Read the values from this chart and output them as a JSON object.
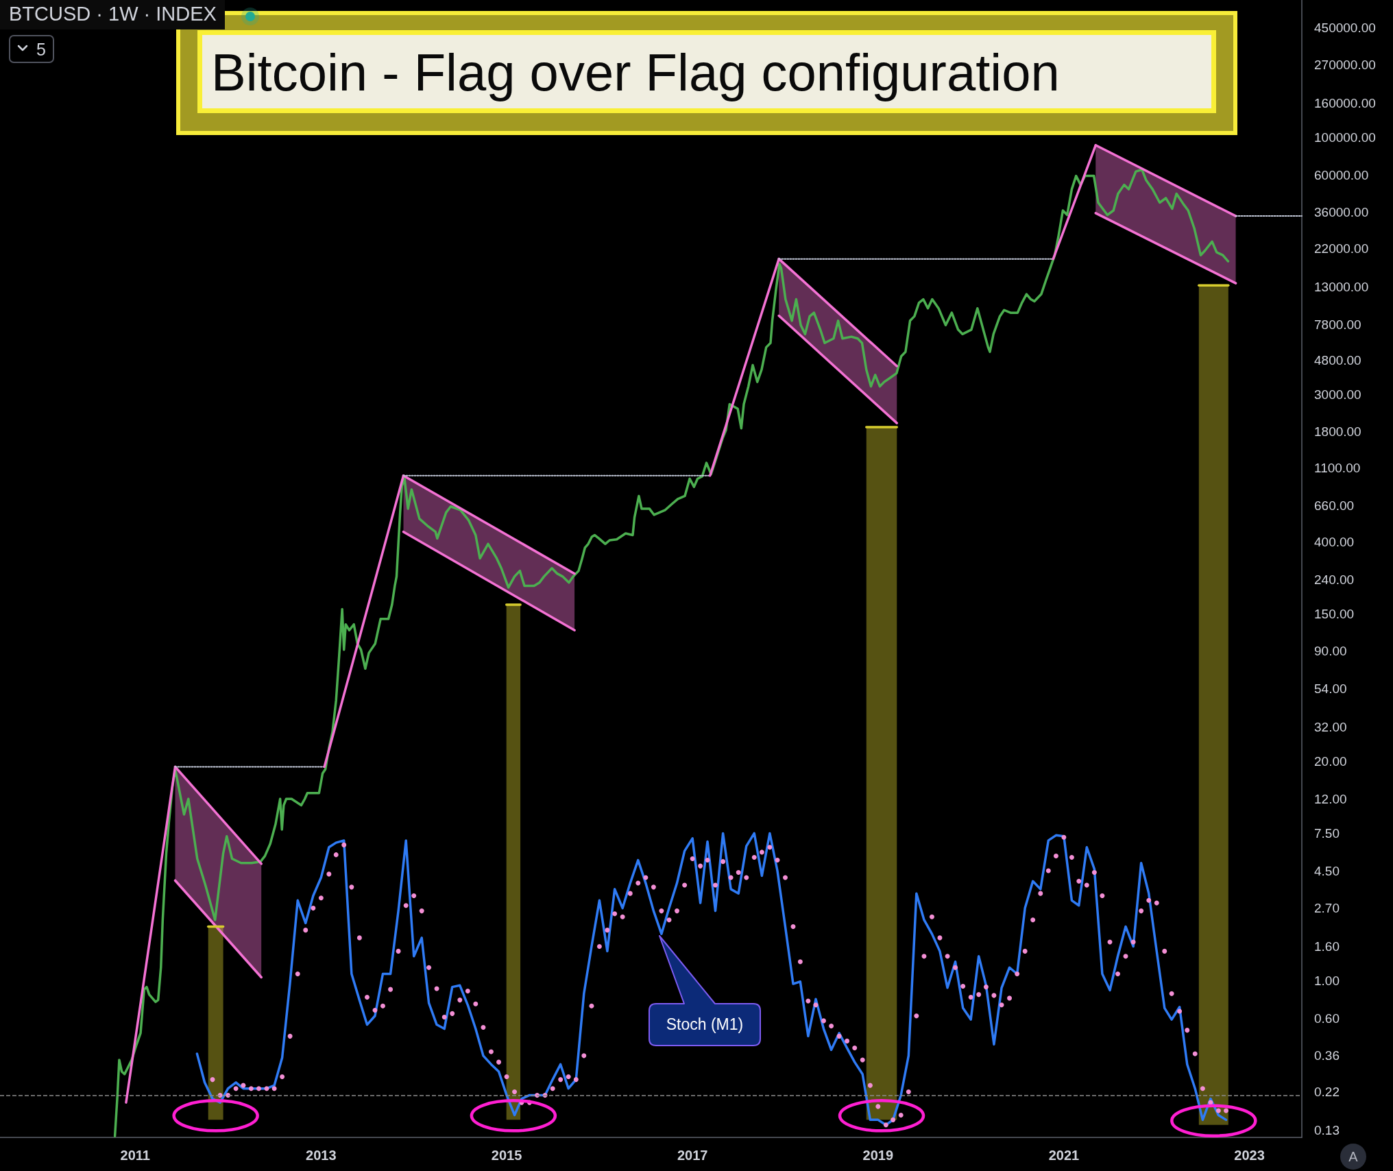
{
  "chart_data": {
    "type": "line",
    "title": "Bitcoin - Flag over Flag configuration",
    "subtitle": "BTCUSD · 1W · INDEX",
    "annotations": [
      "5",
      "A",
      "Stoch (M1)"
    ],
    "log": true,
    "marker": "none",
    "xlim": [
      "2009-07-18",
      "2023-07-26"
    ],
    "xticks": [
      "2011",
      "2013",
      "2015",
      "2017",
      "2019",
      "2021",
      "2023"
    ],
    "ylim": [
      0.118,
      655000
    ],
    "yticks": [
      {
        "value": 450000,
        "label": "450000.00"
      },
      {
        "value": 270000,
        "label": "270000.00"
      },
      {
        "value": 160000,
        "label": "160000.00"
      },
      {
        "value": 100000,
        "label": "100000.00"
      },
      {
        "value": 60000,
        "label": "60000.00"
      },
      {
        "value": 36000,
        "label": "36000.00"
      },
      {
        "value": 22000,
        "label": "22000.00"
      },
      {
        "value": 13000,
        "label": "13000.00"
      },
      {
        "value": 7800,
        "label": "7800.00"
      },
      {
        "value": 4800,
        "label": "4800.00"
      },
      {
        "value": 3000,
        "label": "3000.00"
      },
      {
        "value": 1800,
        "label": "1800.00"
      },
      {
        "value": 1100,
        "label": "1100.00"
      },
      {
        "value": 660,
        "label": "660.00"
      },
      {
        "value": 400,
        "label": "400.00"
      },
      {
        "value": 240,
        "label": "240.00"
      },
      {
        "value": 150,
        "label": "150.00"
      },
      {
        "value": 90,
        "label": "90.00"
      },
      {
        "value": 54,
        "label": "54.00"
      },
      {
        "value": 32,
        "label": "32.00"
      },
      {
        "value": 20,
        "label": "20.00"
      },
      {
        "value": 12,
        "label": "12.00"
      },
      {
        "value": 7.5,
        "label": "7.50"
      },
      {
        "value": 4.5,
        "label": "4.50"
      },
      {
        "value": 2.7,
        "label": "2.70"
      },
      {
        "value": 1.6,
        "label": "1.60"
      },
      {
        "value": 1,
        "label": "1.00"
      },
      {
        "value": 0.6,
        "label": "0.60"
      },
      0.36,
      0.22,
      0.13
    ],
    "ref_lines": [
      {
        "axis": "y",
        "value": 0.21,
        "line_style": "dashed",
        "color": "#8c8c8c"
      }
    ],
    "series": [
      {
        "type": "line",
        "color": "#4caf50",
        "x": [
          "2010-10-13",
          "2010-10-23",
          "2010-10-30",
          "2010-11-09",
          "2010-11-20",
          "2010-12-18",
          "2011-01-04",
          "2011-01-22",
          "2011-02-05",
          "2011-02-15",
          "2011-02-25",
          "2011-03-22",
          "2011-04-01",
          "2011-04-12",
          "2011-04-19",
          "2011-05-03",
          "2011-05-13",
          "2011-05-27",
          "2011-06-07",
          "2011-07-12",
          "2011-07-29",
          "2011-09-02",
          "2011-10-04",
          "2011-11-11",
          "2011-12-13",
          "2011-12-27",
          "2012-01-17",
          "2012-02-21",
          "2012-04-03",
          "2012-05-08",
          "2012-05-25",
          "2012-06-15",
          "2012-07-06",
          "2012-07-24",
          "2012-07-31",
          "2012-08-07",
          "2012-08-17",
          "2012-09-07",
          "2012-10-15",
          "2012-10-29",
          "2012-11-08",
          "2012-11-30",
          "2012-12-24",
          "2013-01-07",
          "2013-01-18",
          "2013-02-01",
          "2013-02-15",
          "2013-03-01",
          "2013-03-13",
          "2013-03-25",
          "2013-04-01",
          "2013-04-08",
          "2013-04-22",
          "2013-05-10",
          "2013-05-24",
          "2013-06-07",
          "2013-06-24",
          "2013-07-08",
          "2013-08-02",
          "2013-08-23",
          "2013-09-23",
          "2013-10-07",
          "2013-10-18",
          "2013-10-25",
          "2013-11-01",
          "2013-11-08",
          "2013-11-15",
          "2013-11-25",
          "2013-12-09",
          "2013-12-23",
          "2014-01-23",
          "2014-02-23",
          "2014-03-27",
          "2014-04-03",
          "2014-05-08",
          "2014-05-26",
          "2014-07-03",
          "2014-08-04",
          "2014-09-01",
          "2014-09-18",
          "2014-10-20",
          "2014-11-23",
          "2014-12-11",
          "2015-01-08",
          "2015-02-01",
          "2015-02-22",
          "2015-03-12",
          "2015-04-19",
          "2015-05-10",
          "2015-05-28",
          "2015-06-28",
          "2015-07-19",
          "2015-08-09",
          "2015-09-03",
          "2015-09-20",
          "2015-10-11",
          "2015-10-25",
          "2015-11-05",
          "2015-11-18",
          "2015-12-02",
          "2015-12-13",
          "2015-12-30",
          "2016-01-24",
          "2016-02-10",
          "2016-03-09",
          "2016-04-13",
          "2016-05-11",
          "2016-05-18",
          "2016-06-04",
          "2016-06-15",
          "2016-07-16",
          "2016-08-03",
          "2016-09-16",
          "2016-10-11",
          "2016-11-04",
          "2016-12-02",
          "2016-12-21",
          "2017-01-07",
          "2017-01-21",
          "2017-02-08",
          "2017-02-25",
          "2017-03-15",
          "2017-04-01",
          "2017-04-29",
          "2017-05-13",
          "2017-05-27",
          "2017-06-28",
          "2017-07-12",
          "2017-07-22",
          "2017-08-09",
          "2017-08-26",
          "2017-09-13",
          "2017-09-30",
          "2017-10-18",
          "2017-11-04",
          "2017-11-11",
          "2017-11-25",
          "2017-12-09",
          "2017-12-16",
          "2018-01-02",
          "2018-01-27",
          "2018-02-13",
          "2018-03-03",
          "2018-03-20",
          "2018-04-07",
          "2018-04-24",
          "2018-05-19",
          "2018-06-05",
          "2018-07-10",
          "2018-07-28",
          "2018-08-14",
          "2018-09-18",
          "2018-10-13",
          "2018-10-30",
          "2018-11-16",
          "2018-12-04",
          "2018-12-21",
          "2019-01-08",
          "2019-01-25",
          "2019-02-19",
          "2019-03-15",
          "2019-04-02",
          "2019-04-19",
          "2019-05-07",
          "2019-05-24",
          "2019-06-11",
          "2019-06-28",
          "2019-07-16",
          "2019-08-02",
          "2019-08-27",
          "2019-09-24",
          "2019-10-18",
          "2019-11-12",
          "2019-11-29",
          "2020-01-03",
          "2020-01-27",
          "2020-03-09",
          "2020-03-16",
          "2020-03-30",
          "2020-04-24",
          "2020-05-11",
          "2020-06-05",
          "2020-07-03",
          "2020-07-20",
          "2020-08-07",
          "2020-08-24",
          "2020-09-07",
          "2020-10-04",
          "2020-10-22",
          "2020-11-08",
          "2020-11-26",
          "2020-12-10",
          "2020-12-28",
          "2021-01-14",
          "2021-02-01",
          "2021-02-18",
          "2021-03-08",
          "2021-03-25",
          "2021-04-29",
          "2021-05-16",
          "2021-06-21",
          "2021-07-15",
          "2021-08-02",
          "2021-08-26",
          "2021-09-13",
          "2021-10-11",
          "2021-11-04",
          "2021-11-21",
          "2021-12-16",
          "2022-01-13",
          "2022-02-06",
          "2022-03-03",
          "2022-03-20",
          "2022-04-17",
          "2022-05-05",
          "2022-05-29",
          "2022-06-23",
          "2022-07-10",
          "2022-08-07",
          "2022-08-25",
          "2022-09-18",
          "2022-10-09"
        ],
        "values": [
          0.12,
          0.21,
          0.34,
          0.29,
          0.28,
          0.34,
          0.41,
          0.49,
          0.89,
          0.92,
          0.83,
          0.75,
          0.77,
          1.2,
          2.3,
          5.7,
          8.6,
          14,
          18,
          9.7,
          12,
          5.3,
          3.7,
          2.3,
          5.7,
          7.2,
          5.3,
          5.0,
          5.0,
          5.1,
          5.5,
          6.5,
          8.5,
          12,
          7.9,
          11,
          12,
          12,
          11,
          12,
          13,
          13,
          13,
          17,
          18,
          24,
          30,
          46,
          84,
          160,
          92,
          130,
          120,
          130,
          100,
          92,
          71,
          88,
          100,
          140,
          140,
          170,
          220,
          250,
          390,
          600,
          860,
          960,
          630,
          820,
          550,
          500,
          460,
          420,
          600,
          650,
          620,
          540,
          440,
          320,
          390,
          320,
          280,
          215,
          250,
          270,
          220,
          220,
          230,
          250,
          280,
          260,
          250,
          230,
          250,
          270,
          320,
          370,
          390,
          430,
          440,
          420,
          390,
          410,
          415,
          450,
          440,
          560,
          750,
          630,
          630,
          580,
          620,
          670,
          720,
          750,
          950,
          850,
          950,
          980,
          1180,
          1010,
          1210,
          1640,
          1850,
          2630,
          2470,
          1890,
          2630,
          3350,
          4480,
          3560,
          4210,
          5710,
          6060,
          8210,
          12400,
          17800,
          16800,
          11000,
          8210,
          11000,
          7730,
          6840,
          8720,
          9160,
          7270,
          6060,
          6440,
          8210,
          6440,
          6600,
          6440,
          6060,
          4210,
          3350,
          3920,
          3350,
          3560,
          3780,
          4010,
          5050,
          5370,
          8210,
          8720,
          10500,
          11000,
          9730,
          11000,
          9730,
          7730,
          9160,
          7270,
          6840,
          7270,
          9730,
          5710,
          5370,
          6840,
          8720,
          9500,
          9160,
          9160,
          10500,
          11800,
          11000,
          10700,
          11800,
          14200,
          16800,
          20100,
          25700,
          37000,
          34800,
          49400,
          59300,
          52500,
          59300,
          59300,
          41200,
          34800,
          37000,
          46500,
          52500,
          49400,
          63000,
          64600,
          55800,
          49400,
          41200,
          43800,
          37900,
          46500,
          40200,
          37000,
          29000,
          20100,
          21400,
          24200,
          20900,
          20100,
          18500
        ]
      },
      {
        "type": "line",
        "color": "#2f7bf5",
        "x": [
          "2011-09",
          "2011-10",
          "2011-11",
          "2011-12",
          "2012-01",
          "2012-02",
          "2012-03",
          "2012-04",
          "2012-05",
          "2012-06",
          "2012-07",
          "2012-08",
          "2012-09",
          "2012-10",
          "2012-11",
          "2012-12",
          "2013-01",
          "2013-02",
          "2013-03",
          "2013-04",
          "2013-05",
          "2013-06",
          "2013-07",
          "2013-08",
          "2013-09",
          "2013-10",
          "2013-11",
          "2013-12",
          "2014-01",
          "2014-02",
          "2014-03",
          "2014-04",
          "2014-05",
          "2014-06",
          "2014-07",
          "2014-08",
          "2014-09",
          "2014-10",
          "2014-11",
          "2014-12",
          "2015-01",
          "2015-02",
          "2015-03",
          "2015-04",
          "2015-05",
          "2015-06",
          "2015-07",
          "2015-08",
          "2015-09",
          "2015-10",
          "2015-11",
          "2015-12",
          "2016-01",
          "2016-02",
          "2016-03",
          "2016-04",
          "2016-05",
          "2016-06",
          "2016-07",
          "2016-08",
          "2016-09",
          "2016-10",
          "2016-11",
          "2016-12",
          "2017-01",
          "2017-02",
          "2017-03",
          "2017-04",
          "2017-05",
          "2017-06",
          "2017-07",
          "2017-08",
          "2017-09",
          "2017-10",
          "2017-11",
          "2017-12",
          "2018-01",
          "2018-02",
          "2018-03",
          "2018-04",
          "2018-05",
          "2018-06",
          "2018-07",
          "2018-08",
          "2018-09",
          "2018-10",
          "2018-11",
          "2018-12",
          "2019-01",
          "2019-02",
          "2019-03",
          "2019-04",
          "2019-05",
          "2019-06",
          "2019-07",
          "2019-08",
          "2019-09",
          "2019-10",
          "2019-11",
          "2019-12",
          "2020-01",
          "2020-02",
          "2020-03",
          "2020-04",
          "2020-05",
          "2020-06",
          "2020-07",
          "2020-08",
          "2020-09",
          "2020-10",
          "2020-11",
          "2020-12",
          "2021-01",
          "2021-02",
          "2021-03",
          "2021-04",
          "2021-05",
          "2021-06",
          "2021-07",
          "2021-08",
          "2021-09",
          "2021-10",
          "2021-11",
          "2021-12",
          "2022-01",
          "2022-02",
          "2022-03",
          "2022-04",
          "2022-05",
          "2022-06",
          "2022-07",
          "2022-08",
          "2022-09",
          "2022-10"
        ],
        "values": [
          0.37,
          0.25,
          0.2,
          0.19,
          0.23,
          0.25,
          0.23,
          0.23,
          0.23,
          0.23,
          0.24,
          0.35,
          0.98,
          3.0,
          2.2,
          3.2,
          4.1,
          6.2,
          6.6,
          6.8,
          1.1,
          0.77,
          0.55,
          0.62,
          1.1,
          1.1,
          2.6,
          6.8,
          1.4,
          1.8,
          0.74,
          0.55,
          0.52,
          0.92,
          0.94,
          0.72,
          0.52,
          0.36,
          0.32,
          0.29,
          0.21,
          0.16,
          0.2,
          0.21,
          0.21,
          0.21,
          0.26,
          0.32,
          0.23,
          0.26,
          0.84,
          1.6,
          3.0,
          1.5,
          3.5,
          2.7,
          3.8,
          5.2,
          3.8,
          2.6,
          1.9,
          2.7,
          3.8,
          5.9,
          7.0,
          2.9,
          6.7,
          2.6,
          7.5,
          3.5,
          3.3,
          6.3,
          7.5,
          4.2,
          7.5,
          4.5,
          2.1,
          0.96,
          0.99,
          0.47,
          0.78,
          0.52,
          0.39,
          0.49,
          0.4,
          0.33,
          0.28,
          0.15,
          0.15,
          0.14,
          0.15,
          0.21,
          0.36,
          3.3,
          2.3,
          1.9,
          1.5,
          0.91,
          1.3,
          0.69,
          0.59,
          1.4,
          0.94,
          0.42,
          0.91,
          1.2,
          1.1,
          2.7,
          3.9,
          3.5,
          6.8,
          7.3,
          7.2,
          3.0,
          2.8,
          6.2,
          4.6,
          1.1,
          0.88,
          1.4,
          2.1,
          1.6,
          5.0,
          3.3,
          1.5,
          0.69,
          0.59,
          0.7,
          0.32,
          0.23,
          0.15,
          0.2,
          0.16,
          0.15
        ]
      },
      {
        "type": "scatter",
        "color": "#f48fd5",
        "marker": "circle",
        "x": [
          "2011-11",
          "2011-12",
          "2012-01",
          "2012-02",
          "2012-03",
          "2012-04",
          "2012-05",
          "2012-06",
          "2012-07",
          "2012-08",
          "2012-09",
          "2012-10",
          "2012-11",
          "2012-12",
          "2013-01",
          "2013-02",
          "2013-03",
          "2013-04",
          "2013-05",
          "2013-06",
          "2013-07",
          "2013-08",
          "2013-09",
          "2013-10",
          "2013-11",
          "2013-12",
          "2014-01",
          "2014-02",
          "2014-03",
          "2014-04",
          "2014-05",
          "2014-06",
          "2014-07",
          "2014-08",
          "2014-09",
          "2014-10",
          "2014-11",
          "2014-12",
          "2015-01",
          "2015-02",
          "2015-03",
          "2015-04",
          "2015-05",
          "2015-06",
          "2015-07",
          "2015-08",
          "2015-09",
          "2015-10",
          "2015-11",
          "2015-12",
          "2016-01",
          "2016-02",
          "2016-03",
          "2016-04",
          "2016-05",
          "2016-06",
          "2016-07",
          "2016-08",
          "2016-09",
          "2016-10",
          "2016-11",
          "2016-12",
          "2017-01",
          "2017-02",
          "2017-03",
          "2017-04",
          "2017-05",
          "2017-06",
          "2017-07",
          "2017-08",
          "2017-09",
          "2017-10",
          "2017-11",
          "2017-12",
          "2018-01",
          "2018-02",
          "2018-03",
          "2018-04",
          "2018-05",
          "2018-06",
          "2018-07",
          "2018-08",
          "2018-09",
          "2018-10",
          "2018-11",
          "2018-12",
          "2019-01",
          "2019-02",
          "2019-03",
          "2019-04",
          "2019-05",
          "2019-06",
          "2019-07",
          "2019-08",
          "2019-09",
          "2019-10",
          "2019-11",
          "2019-12",
          "2020-01",
          "2020-02",
          "2020-03",
          "2020-04",
          "2020-05",
          "2020-06",
          "2020-07",
          "2020-08",
          "2020-09",
          "2020-10",
          "2020-11",
          "2020-12",
          "2021-01",
          "2021-02",
          "2021-03",
          "2021-04",
          "2021-05",
          "2021-06",
          "2021-07",
          "2021-08",
          "2021-09",
          "2021-10",
          "2021-11",
          "2021-12",
          "2022-01",
          "2022-02",
          "2022-03",
          "2022-04",
          "2022-05",
          "2022-06",
          "2022-07",
          "2022-08",
          "2022-09",
          "2022-10"
        ],
        "values": [
          0.26,
          0.21,
          0.21,
          0.23,
          0.24,
          0.23,
          0.23,
          0.23,
          0.23,
          0.27,
          0.47,
          1.1,
          2.0,
          2.7,
          3.1,
          4.3,
          5.6,
          6.4,
          3.6,
          1.8,
          0.8,
          0.67,
          0.71,
          0.89,
          1.5,
          2.8,
          3.2,
          2.6,
          1.2,
          0.9,
          0.61,
          0.64,
          0.77,
          0.87,
          0.73,
          0.53,
          0.38,
          0.33,
          0.27,
          0.22,
          0.19,
          0.19,
          0.21,
          0.21,
          0.23,
          0.26,
          0.27,
          0.26,
          0.36,
          0.71,
          1.6,
          2.0,
          2.5,
          2.4,
          3.3,
          3.8,
          4.1,
          3.6,
          2.6,
          2.3,
          2.6,
          3.7,
          5.3,
          4.8,
          5.2,
          3.7,
          5.1,
          4.1,
          4.4,
          4.1,
          5.4,
          5.8,
          6.2,
          5.2,
          4.1,
          2.1,
          1.3,
          0.76,
          0.72,
          0.58,
          0.54,
          0.47,
          0.44,
          0.4,
          0.34,
          0.24,
          0.18,
          0.14,
          0.15,
          0.16,
          0.22,
          0.62,
          1.4,
          2.4,
          1.8,
          1.4,
          1.2,
          0.93,
          0.8,
          0.83,
          0.92,
          0.82,
          0.72,
          0.79,
          1.1,
          1.5,
          2.3,
          3.3,
          4.5,
          5.5,
          7.1,
          5.4,
          3.9,
          3.7,
          4.4,
          3.2,
          1.7,
          1.1,
          1.4,
          1.7,
          2.6,
          3.0,
          2.9,
          1.5,
          0.84,
          0.66,
          0.51,
          0.37,
          0.23,
          0.19,
          0.17,
          0.17
        ]
      },
      {
        "color": "#f472d4",
        "x": [
          "2010-11-26",
          "2011-06-07"
        ],
        "values": [
          0.19,
          18.6
        ]
      },
      {
        "color": "#f472d4",
        "x": [
          "2011-06-07",
          "2012-05-11"
        ],
        "values": [
          18.6,
          4.95
        ],
        "lower": [
          3.94,
          1.05
        ],
        "upper": [
          18.6,
          4.95
        ]
      },
      {
        "color": "#f472d4",
        "x": [
          "2011-06-07",
          "2012-05-11"
        ],
        "values": [
          3.94,
          1.05
        ]
      },
      {
        "color": "#c3c9d9",
        "line_style": "dotted",
        "x": [
          "2011-06-07",
          "2013-01-14"
        ],
        "values": [
          18.6,
          18.6
        ]
      },
      {
        "color": "#f472d4",
        "x": [
          "2013-01-14",
          "2013-11-21"
        ],
        "values": [
          18.6,
          990
        ]
      },
      {
        "color": "#f472d4",
        "x": [
          "2013-11-21",
          "2015-09-25"
        ],
        "values": [
          990,
          260
        ],
        "lower": [
          460,
          120
        ],
        "upper": [
          990,
          260
        ]
      },
      {
        "color": "#f472d4",
        "x": [
          "2013-11-21",
          "2015-09-25"
        ],
        "values": [
          460,
          120
        ]
      },
      {
        "color": "#c3c9d9",
        "line_style": "dotted",
        "x": [
          "2013-11-21",
          "2017-03-11"
        ],
        "values": [
          990,
          990
        ]
      },
      {
        "color": "#f472d4",
        "x": [
          "2017-03-11",
          "2017-12-07"
        ],
        "values": [
          990,
          19100
        ]
      },
      {
        "color": "#f472d4",
        "x": [
          "2017-12-07",
          "2019-03-16"
        ],
        "values": [
          19100,
          4420
        ],
        "lower": [
          8790,
          2030
        ],
        "upper": [
          19100,
          4420
        ]
      },
      {
        "color": "#f472d4",
        "x": [
          "2017-12-07",
          "2019-03-16"
        ],
        "values": [
          8790,
          2030
        ]
      },
      {
        "color": "#c3c9d9",
        "line_style": "dotted",
        "x": [
          "2017-12-07",
          "2020-11-20"
        ],
        "values": [
          19100,
          19100
        ]
      },
      {
        "color": "#f472d4",
        "x": [
          "2020-11-20",
          "2021-05-06"
        ],
        "values": [
          19100,
          90200
        ]
      },
      {
        "color": "#f472d4",
        "x": [
          "2021-05-06",
          "2022-11-08"
        ],
        "values": [
          90200,
          34300
        ],
        "lower": [
          35700,
          13700
        ],
        "upper": [
          90200,
          34300
        ]
      },
      {
        "color": "#f472d4",
        "x": [
          "2021-05-06",
          "2022-11-08"
        ],
        "values": [
          35700,
          13700
        ]
      },
      {
        "color": "#c3c9d9",
        "line_style": "dotted",
        "x": [
          "2022-11-08",
          "2023-07-26"
        ],
        "values": [
          34300,
          34300
        ]
      },
      {
        "color": "#d6cc2e",
        "x": [
          "2011-10-15",
          "2011-12-13"
        ],
        "values": [
          2.1,
          2.1
        ],
        "lower": [
          0.15,
          0.15
        ],
        "upper": [
          2.1,
          2.1
        ]
      },
      {
        "color": "#d6cc2e",
        "x": [
          "2014-12-31",
          "2015-02-24"
        ],
        "values": [
          170,
          170
        ],
        "lower": [
          0.15,
          0.15
        ],
        "upper": [
          170,
          170
        ]
      },
      {
        "color": "#d6cc2e",
        "x": [
          "2018-11-16",
          "2019-03-16"
        ],
        "values": [
          1920,
          1920
        ],
        "lower": [
          0.15,
          0.15
        ],
        "upper": [
          1920,
          1920
        ]
      },
      {
        "color": "#d6cc2e",
        "x": [
          "2022-06-16",
          "2022-10-10"
        ],
        "values": [
          13300,
          13300
        ],
        "lower": [
          0.14,
          0.14
        ],
        "upper": [
          13300,
          13300
        ]
      }
    ]
  }
}
